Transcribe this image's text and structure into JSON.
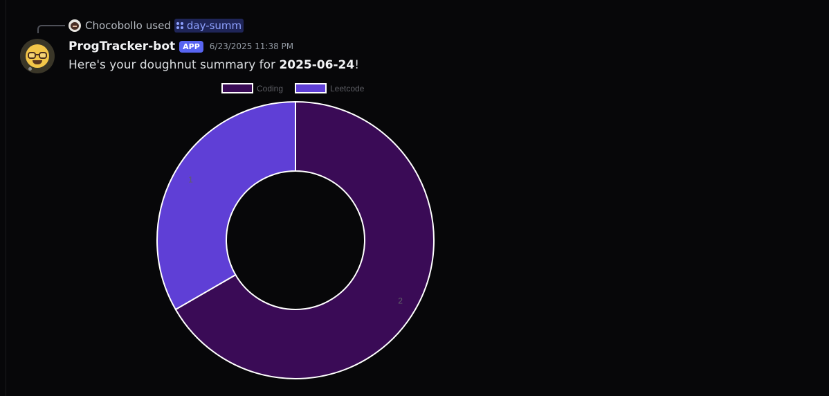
{
  "reply": {
    "user": "Chocobollo",
    "action": "used",
    "command": "day-summ"
  },
  "message": {
    "username": "ProgTracker-bot",
    "badge": "APP",
    "timestamp": "6/23/2025 11:38 PM",
    "text_prefix": "Here's your doughnut summary for ",
    "text_date": "2025-06-24",
    "text_suffix": "!"
  },
  "icons": {
    "reply_avatar": "user-avatar-icon",
    "command": "slash-command-icon",
    "bot_avatar": "nerd-face-icon"
  },
  "chart_data": {
    "type": "pie",
    "style": "doughnut",
    "labels": [
      "Coding",
      "Leetcode"
    ],
    "values": [
      2,
      1
    ],
    "colors": [
      "#3a0b56",
      "#5f3fd6"
    ],
    "legend": "top-center",
    "title": ""
  }
}
